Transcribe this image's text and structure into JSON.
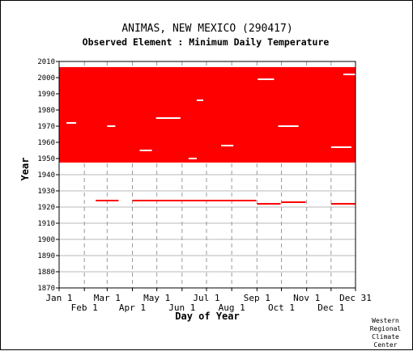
{
  "chart_data": {
    "type": "heatmap",
    "title": "ANIMAS, NEW MEXICO   (290417)",
    "subtitle": "Observed Element : Minimum Daily Temperature",
    "xlabel": "Day of Year",
    "ylabel": "Year",
    "ylim": [
      1870,
      2010
    ],
    "y_ticks": [
      1870,
      1880,
      1890,
      1900,
      1910,
      1920,
      1930,
      1940,
      1950,
      1960,
      1970,
      1980,
      1990,
      2000,
      2010
    ],
    "x_ticks_top_row": [
      {
        "label": "Jan 1",
        "day": 1
      },
      {
        "label": "Mar 1",
        "day": 60
      },
      {
        "label": "May 1",
        "day": 121
      },
      {
        "label": "Jul 1",
        "day": 182
      },
      {
        "label": "Sep 1",
        "day": 244
      },
      {
        "label": "Nov 1",
        "day": 305
      },
      {
        "label": "Dec 31",
        "day": 365
      }
    ],
    "x_ticks_bottom_row": [
      {
        "label": "Feb 1",
        "day": 32
      },
      {
        "label": "Apr 1",
        "day": 91
      },
      {
        "label": "Jun 1",
        "day": 152
      },
      {
        "label": "Aug 1",
        "day": 213
      },
      {
        "label": "Oct 1",
        "day": 274
      },
      {
        "label": "Dec 1",
        "day": 335
      }
    ],
    "grid": true,
    "data_color": "#ff0000",
    "observed_blocks": [
      {
        "from_day": 1,
        "to_day": 365,
        "from_year": 1948,
        "to_year": 2006
      },
      {
        "from_day": 46,
        "to_day": 74,
        "from_year": 1924,
        "to_year": 1924
      },
      {
        "from_day": 91,
        "to_day": 243,
        "from_year": 1924,
        "to_year": 1924
      },
      {
        "from_day": 244,
        "to_day": 273,
        "from_year": 1922,
        "to_year": 1922
      },
      {
        "from_day": 274,
        "to_day": 304,
        "from_year": 1923,
        "to_year": 1923
      },
      {
        "from_day": 335,
        "to_day": 365,
        "from_year": 1922,
        "to_year": 1922
      }
    ],
    "missing_marks": [
      {
        "day": 245,
        "year": 1999,
        "to_day": 265
      },
      {
        "day": 350,
        "year": 2002,
        "to_day": 365
      },
      {
        "day": 170,
        "year": 1986,
        "to_day": 178
      },
      {
        "day": 10,
        "year": 1972,
        "to_day": 22
      },
      {
        "day": 60,
        "year": 1970,
        "to_day": 70
      },
      {
        "day": 270,
        "year": 1970,
        "to_day": 295
      },
      {
        "day": 120,
        "year": 1975,
        "to_day": 150
      },
      {
        "day": 200,
        "year": 1958,
        "to_day": 215
      },
      {
        "day": 335,
        "year": 1957,
        "to_day": 360
      },
      {
        "day": 100,
        "year": 1955,
        "to_day": 115
      },
      {
        "day": 160,
        "year": 1950,
        "to_day": 170
      }
    ],
    "credit": [
      "Western",
      "Regional",
      "Climate",
      "Center"
    ]
  }
}
